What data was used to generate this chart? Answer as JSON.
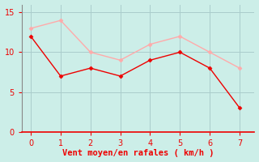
{
  "x": [
    0,
    1,
    2,
    3,
    4,
    5,
    6,
    7
  ],
  "y_red": [
    12,
    7,
    8,
    7,
    9,
    10,
    8,
    3
  ],
  "y_pink": [
    13,
    14,
    10,
    9,
    11,
    12,
    10,
    8
  ],
  "red_color": "#ee0000",
  "pink_color": "#ffaaaa",
  "bg_color": "#cceee8",
  "grid_color": "#aacccc",
  "axis_color": "#ee0000",
  "xlabel": "Vent moyen/en rafales ( km/h )",
  "xlabel_color": "#ee0000",
  "tick_color": "#ee0000",
  "xlim": [
    -0.3,
    7.5
  ],
  "ylim": [
    0,
    16
  ],
  "yticks": [
    0,
    5,
    10,
    15
  ],
  "xticks": [
    0,
    1,
    2,
    3,
    4,
    5,
    6,
    7
  ],
  "tick_labelsize": 7,
  "xlabel_fontsize": 7.5
}
